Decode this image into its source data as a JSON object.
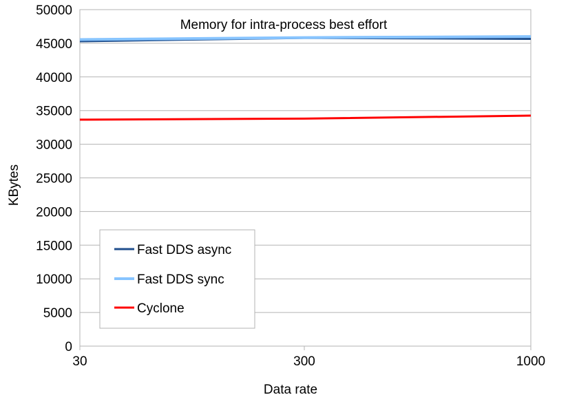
{
  "chart_data": {
    "type": "line",
    "title": "Memory for intra-process best effort",
    "xlabel": "Data rate",
    "ylabel": "KBytes",
    "categories": [
      "30",
      "300",
      "1000"
    ],
    "x": [
      30,
      300,
      1000
    ],
    "ylim": [
      0,
      50000
    ],
    "yticks": [
      0,
      5000,
      10000,
      15000,
      20000,
      25000,
      30000,
      35000,
      40000,
      45000,
      50000
    ],
    "grid": true,
    "legend_position": "left",
    "series": [
      {
        "name": "Fast DDS async",
        "color": "#1f4e8c",
        "values": [
          45300,
          45800,
          45650
        ]
      },
      {
        "name": "Fast DDS sync",
        "color": "#87c4ff",
        "values": [
          45550,
          45850,
          46000
        ]
      },
      {
        "name": "Cyclone",
        "color": "#ff0000",
        "values": [
          33650,
          33800,
          34250
        ]
      }
    ]
  }
}
